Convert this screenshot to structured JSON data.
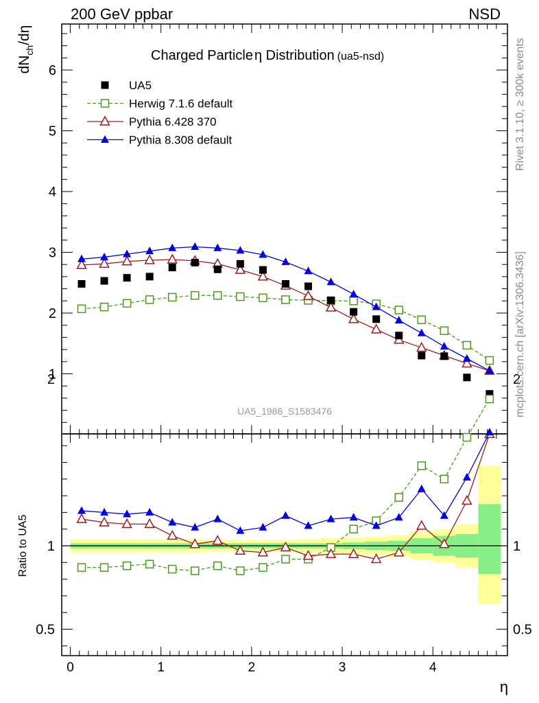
{
  "header": {
    "left": "200 GeV ppbar",
    "right": "NSD"
  },
  "side": {
    "rivet": "Rivet 3.1.10, ≥ 300k events",
    "mcplots": "mcplots.cern.ch [arXiv:1306.3436]"
  },
  "chart_data": {
    "type": "scatter",
    "title": "Charged Particle",
    "title_symbol": "η",
    "title_tail": " Distribution",
    "title_tag": "(ua5-nsd)",
    "watermark": "UA5_1986_S1583476",
    "xlabel": "η",
    "ylabel_main": "dNch/dη",
    "ylabel_ratio": "Ratio to UA5",
    "xlim": [
      -0.1,
      4.8
    ],
    "ylim_main": [
      0,
      6.8
    ],
    "ylim_ratio": [
      0.35,
      2.35
    ],
    "x_ticks": [
      "0",
      "1",
      "2",
      "3",
      "4"
    ],
    "y_ticks_main": [
      "1",
      "2",
      "3",
      "4",
      "5",
      "6"
    ],
    "y_ticks_ratio": [
      "0.5",
      "1",
      "2"
    ],
    "legend_position": "top-left",
    "x": [
      0.125,
      0.375,
      0.625,
      0.875,
      1.125,
      1.375,
      1.625,
      1.875,
      2.125,
      2.375,
      2.625,
      2.875,
      3.125,
      3.375,
      3.625,
      3.875,
      4.125,
      4.375,
      4.625
    ],
    "series": [
      {
        "name": "UA5",
        "style": "data",
        "color": "#000000",
        "values": [
          2.48,
          2.53,
          2.58,
          2.6,
          2.75,
          2.83,
          2.72,
          2.81,
          2.71,
          2.48,
          2.44,
          2.21,
          2.02,
          1.9,
          1.63,
          1.3,
          1.29,
          0.94,
          0.67
        ],
        "ratio": [
          1.0,
          1.0,
          1.0,
          1.0,
          1.0,
          1.0,
          1.0,
          1.0,
          1.0,
          1.0,
          1.0,
          1.0,
          1.0,
          1.0,
          1.0,
          1.0,
          1.0,
          1.0,
          1.0
        ]
      },
      {
        "name": "Herwig 7.1.6 default",
        "style": "open-square-dashed",
        "color": "#4a9a1a",
        "values": [
          2.07,
          2.1,
          2.16,
          2.22,
          2.26,
          2.29,
          2.29,
          2.27,
          2.25,
          2.22,
          2.21,
          2.2,
          2.2,
          2.15,
          2.05,
          1.89,
          1.71,
          1.47,
          1.22
        ],
        "ratio": [
          0.87,
          0.87,
          0.88,
          0.89,
          0.86,
          0.85,
          0.88,
          0.85,
          0.87,
          0.92,
          0.92,
          0.99,
          1.1,
          1.15,
          1.29,
          1.48,
          1.4,
          1.65,
          1.88
        ]
      },
      {
        "name": "Pythia 6.428 370",
        "style": "open-triangle",
        "color": "#a01a1a",
        "values": [
          2.79,
          2.81,
          2.85,
          2.87,
          2.88,
          2.86,
          2.81,
          2.71,
          2.6,
          2.45,
          2.28,
          2.09,
          1.9,
          1.73,
          1.56,
          1.43,
          1.3,
          1.17,
          1.05
        ],
        "ratio": [
          1.16,
          1.14,
          1.13,
          1.13,
          1.06,
          1.01,
          1.03,
          0.97,
          0.96,
          0.99,
          0.94,
          0.95,
          0.95,
          0.92,
          0.96,
          1.12,
          1.01,
          1.27,
          1.67
        ]
      },
      {
        "name": "Pythia 8.308 default",
        "style": "filled-triangle",
        "color": "#0000e0",
        "values": [
          2.89,
          2.92,
          2.97,
          3.02,
          3.07,
          3.09,
          3.07,
          3.03,
          2.96,
          2.84,
          2.69,
          2.51,
          2.31,
          2.1,
          1.88,
          1.67,
          1.45,
          1.25,
          1.05
        ],
        "ratio": [
          1.21,
          1.2,
          1.19,
          1.2,
          1.14,
          1.11,
          1.16,
          1.09,
          1.11,
          1.18,
          1.12,
          1.16,
          1.17,
          1.12,
          1.17,
          1.34,
          1.18,
          1.41,
          1.68
        ]
      }
    ],
    "uncertainty_bands": {
      "inner_color": "#88ee88",
      "outer_color": "#ffff99",
      "x_edges": [
        0.0,
        0.25,
        0.5,
        0.75,
        1.0,
        1.25,
        1.5,
        1.75,
        2.0,
        2.25,
        2.5,
        2.75,
        3.0,
        3.25,
        3.5,
        3.75,
        4.0,
        4.25,
        4.5,
        4.75
      ],
      "inner_lo": [
        0.985,
        0.985,
        0.985,
        0.985,
        0.985,
        0.985,
        0.985,
        0.985,
        0.985,
        0.985,
        0.985,
        0.985,
        0.98,
        0.975,
        0.97,
        0.955,
        0.94,
        0.93,
        0.83
      ],
      "inner_hi": [
        1.015,
        1.015,
        1.015,
        1.015,
        1.015,
        1.015,
        1.015,
        1.015,
        1.015,
        1.015,
        1.015,
        1.015,
        1.02,
        1.025,
        1.03,
        1.045,
        1.06,
        1.07,
        1.25
      ],
      "outer_lo": [
        0.96,
        0.96,
        0.96,
        0.96,
        0.96,
        0.96,
        0.965,
        0.965,
        0.965,
        0.965,
        0.96,
        0.955,
        0.95,
        0.945,
        0.935,
        0.915,
        0.9,
        0.87,
        0.65
      ],
      "outer_hi": [
        1.04,
        1.04,
        1.04,
        1.04,
        1.04,
        1.04,
        1.035,
        1.035,
        1.035,
        1.035,
        1.04,
        1.045,
        1.05,
        1.055,
        1.065,
        1.085,
        1.1,
        1.13,
        1.48
      ]
    }
  }
}
